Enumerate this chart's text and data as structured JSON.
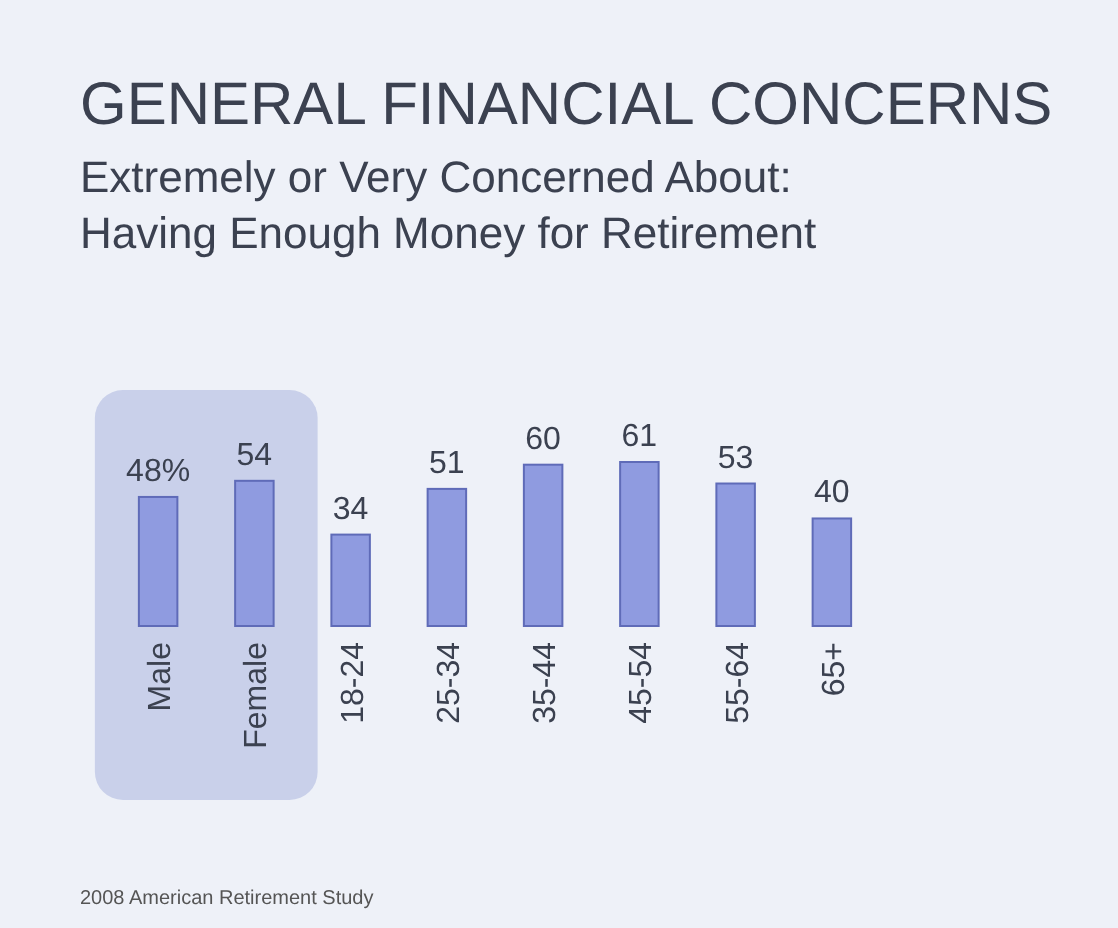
{
  "chart_data": {
    "type": "bar",
    "title": "GENERAL FINANCIAL CONCERNS",
    "subtitle": "Extremely or Very Concerned About: Having Enough Money for Retirement",
    "categories": [
      "Male",
      "Female",
      "18-24",
      "25-34",
      "35-44",
      "45-54",
      "55-64",
      "65+"
    ],
    "values": [
      48,
      54,
      34,
      51,
      60,
      61,
      53,
      40
    ],
    "value_labels": [
      "48%",
      "54",
      "34",
      "51",
      "60",
      "61",
      "53",
      "40"
    ],
    "color": "#8f9be0",
    "bands": [
      {
        "axis": "x",
        "from": "Male",
        "to": "Female",
        "color": "#c9d0ea"
      }
    ],
    "annotations": [
      "2008 American Retirement Study"
    ]
  }
}
